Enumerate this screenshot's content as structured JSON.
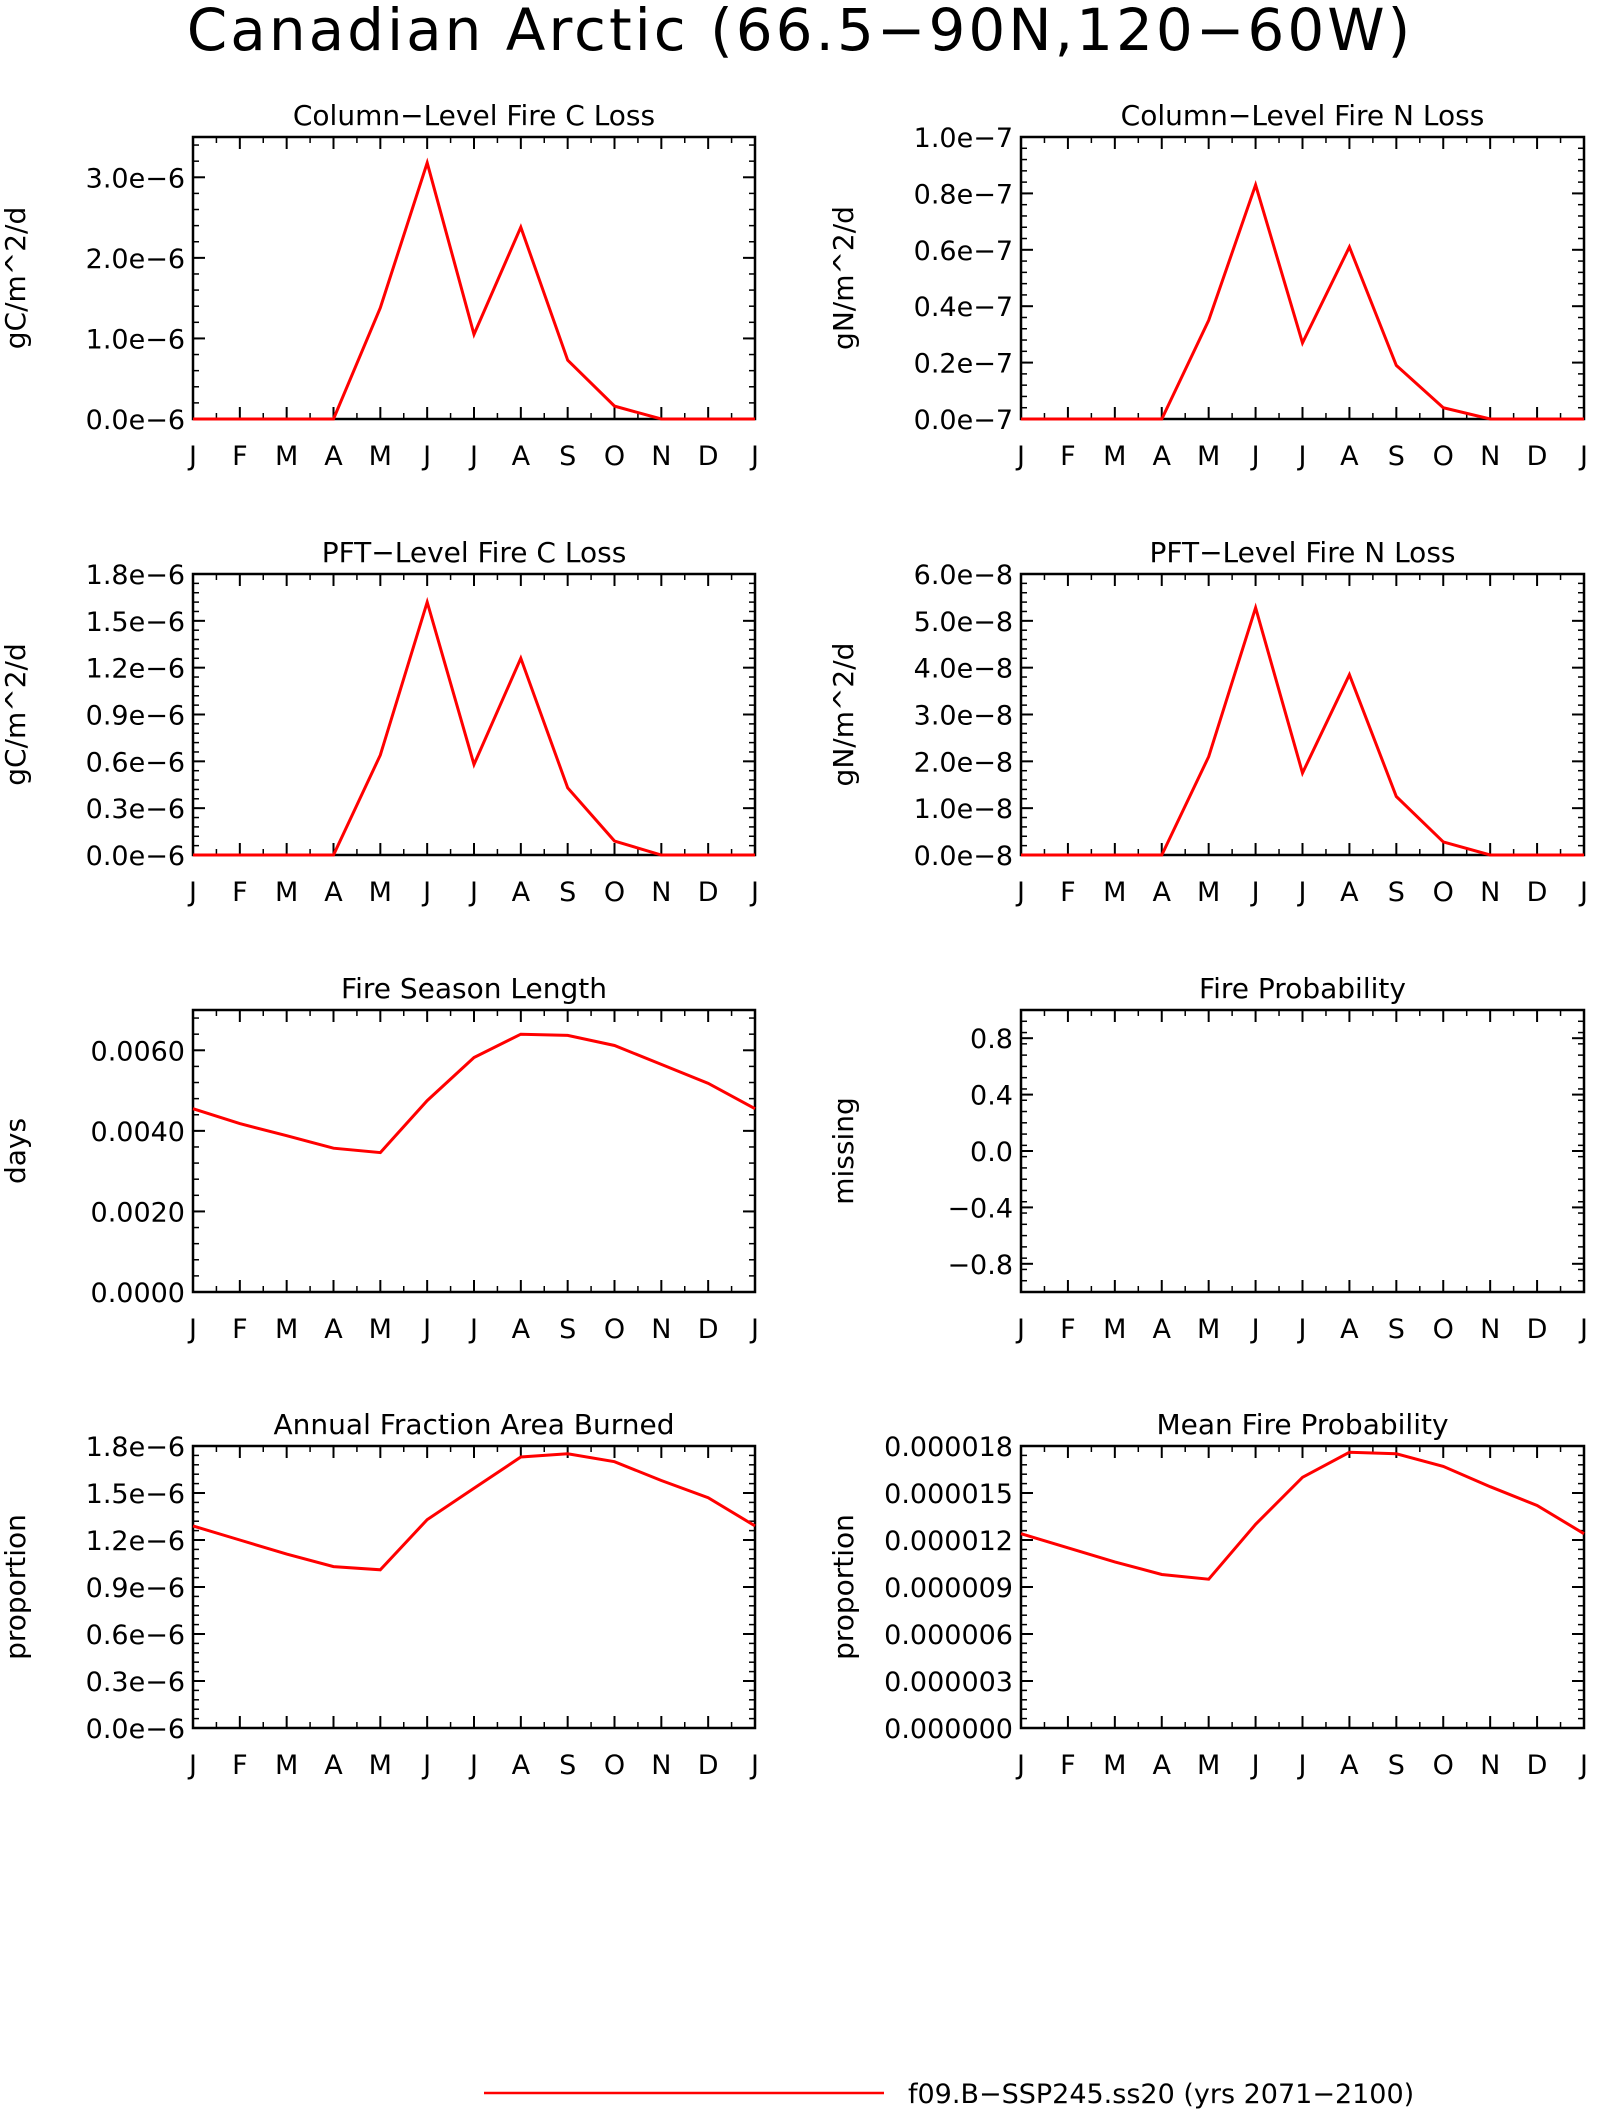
{
  "figure": {
    "title": "Canadian Arctic (66.5−90N,120−60W)",
    "legend": {
      "label": "f09.B−SSP245.ss20 (yrs 2071−2100)",
      "color": "#ff0000",
      "position": "bottom-center"
    }
  },
  "chart_data": [
    {
      "type": "line",
      "title": "Column−Level Fire C Loss",
      "ylabel": "gC/m^2/d",
      "categories": [
        "J",
        "F",
        "M",
        "A",
        "M",
        "J",
        "J",
        "A",
        "S",
        "O",
        "N",
        "D",
        "J"
      ],
      "ylim": [
        0,
        3.5e-06
      ],
      "yticks": [
        0,
        1e-06,
        2e-06,
        3e-06
      ],
      "ytick_labels": [
        "0.0e−6",
        "1.0e−6",
        "2.0e−6",
        "3.0e−6"
      ],
      "series": [
        {
          "values": [
            0,
            0,
            0,
            0,
            1.38e-06,
            3.18e-06,
            1.05e-06,
            2.38e-06,
            7.3e-07,
            1.6e-07,
            0,
            0,
            0
          ],
          "color": "#ff0000"
        }
      ]
    },
    {
      "type": "line",
      "title": "Column−Level Fire N Loss",
      "ylabel": "gN/m^2/d",
      "categories": [
        "J",
        "F",
        "M",
        "A",
        "M",
        "J",
        "J",
        "A",
        "S",
        "O",
        "N",
        "D",
        "J"
      ],
      "ylim": [
        0,
        1e-07
      ],
      "yticks": [
        0,
        2e-08,
        4e-08,
        6e-08,
        8e-08,
        1e-07
      ],
      "ytick_labels": [
        "0.0e−7",
        "0.2e−7",
        "0.4e−7",
        "0.6e−7",
        "0.8e−7",
        "1.0e−7"
      ],
      "series": [
        {
          "values": [
            0,
            0,
            0,
            0,
            3.5e-08,
            8.3e-08,
            2.7e-08,
            6.1e-08,
            1.9e-08,
            4e-09,
            0,
            0,
            0
          ],
          "color": "#ff0000"
        }
      ]
    },
    {
      "type": "line",
      "title": "PFT−Level Fire C Loss",
      "ylabel": "gC/m^2/d",
      "categories": [
        "J",
        "F",
        "M",
        "A",
        "M",
        "J",
        "J",
        "A",
        "S",
        "O",
        "N",
        "D",
        "J"
      ],
      "ylim": [
        0,
        1.8e-06
      ],
      "yticks": [
        0,
        3e-07,
        6e-07,
        9e-07,
        1.2e-06,
        1.5e-06,
        1.8e-06
      ],
      "ytick_labels": [
        "0.0e−6",
        "0.3e−6",
        "0.6e−6",
        "0.9e−6",
        "1.2e−6",
        "1.5e−6",
        "1.8e−6"
      ],
      "series": [
        {
          "values": [
            0,
            0,
            0,
            0,
            6.4e-07,
            1.62e-06,
            5.8e-07,
            1.26e-06,
            4.3e-07,
            9e-08,
            0,
            0,
            0
          ],
          "color": "#ff0000"
        }
      ]
    },
    {
      "type": "line",
      "title": "PFT−Level Fire N Loss",
      "ylabel": "gN/m^2/d",
      "categories": [
        "J",
        "F",
        "M",
        "A",
        "M",
        "J",
        "J",
        "A",
        "S",
        "O",
        "N",
        "D",
        "J"
      ],
      "ylim": [
        0,
        6e-08
      ],
      "yticks": [
        0,
        1e-08,
        2e-08,
        3e-08,
        4e-08,
        5e-08,
        6e-08
      ],
      "ytick_labels": [
        "0.0e−8",
        "1.0e−8",
        "2.0e−8",
        "3.0e−8",
        "4.0e−8",
        "5.0e−8",
        "6.0e−8"
      ],
      "series": [
        {
          "values": [
            0,
            0,
            0,
            0,
            2.1e-08,
            5.28e-08,
            1.75e-08,
            3.85e-08,
            1.25e-08,
            2.8e-09,
            0,
            0,
            0
          ],
          "color": "#ff0000"
        }
      ]
    },
    {
      "type": "line",
      "title": "Fire Season Length",
      "ylabel": "days",
      "categories": [
        "J",
        "F",
        "M",
        "A",
        "M",
        "J",
        "J",
        "A",
        "S",
        "O",
        "N",
        "D",
        "J"
      ],
      "ylim": [
        0,
        0.007
      ],
      "yticks": [
        0,
        0.002,
        0.004,
        0.006
      ],
      "ytick_labels": [
        "0.0000",
        "0.0020",
        "0.0040",
        "0.0060"
      ],
      "series": [
        {
          "values": [
            0.00455,
            0.00418,
            0.00388,
            0.00357,
            0.00346,
            0.00475,
            0.00582,
            0.0064,
            0.00637,
            0.00612,
            0.00565,
            0.00518,
            0.00455
          ],
          "color": "#ff0000"
        }
      ]
    },
    {
      "type": "line",
      "title": "Fire Probability",
      "ylabel": "missing",
      "categories": [
        "J",
        "F",
        "M",
        "A",
        "M",
        "J",
        "J",
        "A",
        "S",
        "O",
        "N",
        "D",
        "J"
      ],
      "ylim": [
        -1.0,
        1.0
      ],
      "yticks": [
        -0.8,
        -0.4,
        0.0,
        0.4,
        0.8
      ],
      "ytick_labels": [
        "−0.8",
        "−0.4",
        "0.0",
        "0.4",
        "0.8"
      ],
      "series": []
    },
    {
      "type": "line",
      "title": "Annual Fraction Area Burned",
      "ylabel": "proportion",
      "categories": [
        "J",
        "F",
        "M",
        "A",
        "M",
        "J",
        "J",
        "A",
        "S",
        "O",
        "N",
        "D",
        "J"
      ],
      "ylim": [
        0,
        1.8e-06
      ],
      "yticks": [
        0,
        3e-07,
        6e-07,
        9e-07,
        1.2e-06,
        1.5e-06,
        1.8e-06
      ],
      "ytick_labels": [
        "0.0e−6",
        "0.3e−6",
        "0.6e−6",
        "0.9e−6",
        "1.2e−6",
        "1.5e−6",
        "1.8e−6"
      ],
      "series": [
        {
          "values": [
            1.29e-06,
            1.2e-06,
            1.11e-06,
            1.03e-06,
            1.01e-06,
            1.33e-06,
            1.53e-06,
            1.73e-06,
            1.75e-06,
            1.7e-06,
            1.58e-06,
            1.47e-06,
            1.29e-06
          ],
          "color": "#ff0000"
        }
      ]
    },
    {
      "type": "line",
      "title": "Mean Fire Probability",
      "ylabel": "proportion",
      "categories": [
        "J",
        "F",
        "M",
        "A",
        "M",
        "J",
        "J",
        "A",
        "S",
        "O",
        "N",
        "D",
        "J"
      ],
      "ylim": [
        0,
        1.8e-05
      ],
      "yticks": [
        0,
        3e-06,
        6e-06,
        9e-06,
        1.2e-05,
        1.5e-05,
        1.8e-05
      ],
      "ytick_labels": [
        "0.000000",
        "0.000003",
        "0.000006",
        "0.000009",
        "0.000012",
        "0.000015",
        "0.000018"
      ],
      "series": [
        {
          "values": [
            1.24e-05,
            1.15e-05,
            1.06e-05,
            9.8e-06,
            9.5e-06,
            1.3e-05,
            1.6e-05,
            1.76e-05,
            1.75e-05,
            1.67e-05,
            1.54e-05,
            1.42e-05,
            1.24e-05
          ],
          "color": "#ff0000"
        }
      ]
    }
  ]
}
